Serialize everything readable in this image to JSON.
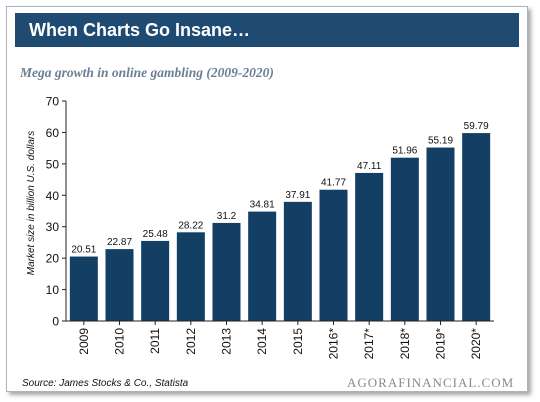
{
  "header": {
    "title": "When Charts Go Insane…",
    "subtitle": "Mega growth in online gambling (2009-2020)"
  },
  "footer": {
    "source": "Source: James Stocks & Co., Statista",
    "brand": "AGORAFINANCIAL.COM"
  },
  "colors": {
    "banner": "#1f4b73",
    "bar": "#123f63",
    "subtitle": "#6a7f93"
  },
  "chart_data": {
    "type": "bar",
    "title": "Mega growth in online gambling (2009-2020)",
    "xlabel": "",
    "ylabel": "Market size in billion U.S. dollars",
    "categories": [
      "2009",
      "2010",
      "2011",
      "2012",
      "2013",
      "2014",
      "2015",
      "2016*",
      "2017*",
      "2018*",
      "2019*",
      "2020*"
    ],
    "values": [
      20.51,
      22.87,
      25.48,
      28.22,
      31.2,
      34.81,
      37.91,
      41.77,
      47.11,
      51.96,
      55.19,
      59.79
    ],
    "value_labels": [
      "20.51",
      "22.87",
      "25.48",
      "28.22",
      "31.2",
      "34.81",
      "37.91",
      "41.77",
      "47.11",
      "51.96",
      "55.19",
      "59.79"
    ],
    "ylim": [
      0,
      70
    ],
    "yticks": [
      "0",
      "10",
      "20",
      "30",
      "40",
      "50",
      "60",
      "70"
    ],
    "grid": false,
    "legend": "none"
  }
}
